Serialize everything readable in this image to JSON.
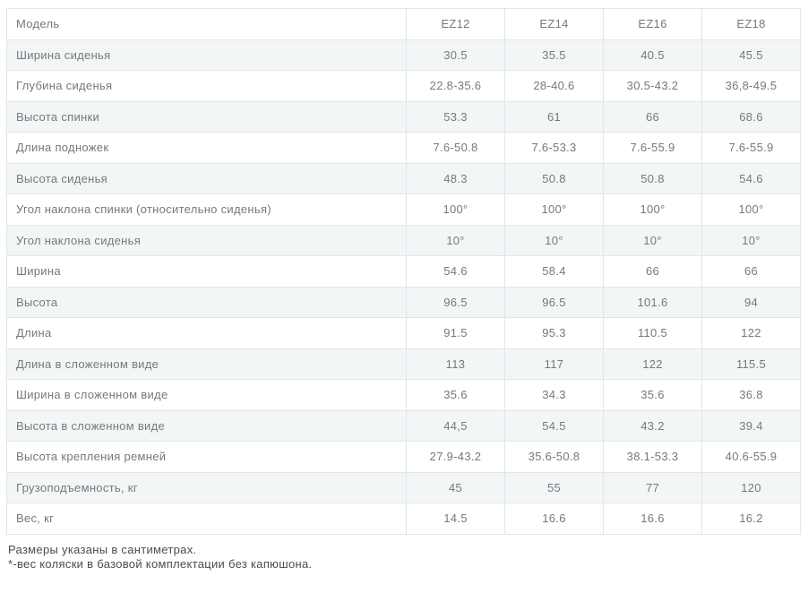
{
  "table": {
    "rows": [
      {
        "label": "Модель",
        "values": [
          "EZ12",
          "EZ14",
          "EZ16",
          "EZ18"
        ]
      },
      {
        "label": "Ширина сиденья",
        "values": [
          "30.5",
          "35.5",
          "40.5",
          "45.5"
        ]
      },
      {
        "label": "Глубина сиденья",
        "values": [
          "22.8-35.6",
          "28-40.6",
          "30.5-43.2",
          "36,8-49.5"
        ]
      },
      {
        "label": "Высота спинки",
        "values": [
          "53.3",
          "61",
          "66",
          "68.6"
        ]
      },
      {
        "label": "Длина подножек",
        "values": [
          "7.6-50.8",
          "7.6-53.3",
          "7.6-55.9",
          "7.6-55.9"
        ]
      },
      {
        "label": "Высота сиденья",
        "values": [
          "48.3",
          "50.8",
          "50.8",
          "54.6"
        ]
      },
      {
        "label": "Угол наклона спинки (относительно сиденья)",
        "values": [
          "100°",
          "100°",
          "100°",
          "100°"
        ]
      },
      {
        "label": "Угол наклона сиденья",
        "values": [
          "10°",
          "10°",
          "10°",
          "10°"
        ]
      },
      {
        "label": "Ширина",
        "values": [
          "54.6",
          "58.4",
          "66",
          "66"
        ]
      },
      {
        "label": "Высота",
        "values": [
          "96.5",
          "96.5",
          "101.6",
          "94"
        ]
      },
      {
        "label": "Длина",
        "values": [
          "91.5",
          "95.3",
          "110.5",
          "122"
        ]
      },
      {
        "label": "Длина в сложенном виде",
        "values": [
          "113",
          "117",
          "122",
          "115.5"
        ]
      },
      {
        "label": "Ширина в сложенном виде",
        "values": [
          "35.6",
          "34.3",
          "35.6",
          "36.8"
        ]
      },
      {
        "label": "Высота в сложенном виде",
        "values": [
          "44,5",
          "54.5",
          "43.2",
          "39.4"
        ]
      },
      {
        "label": "Высота крепления ремней",
        "values": [
          "27.9-43.2",
          "35.6-50.8",
          "38.1-53.3",
          "40.6-55.9"
        ]
      },
      {
        "label": "Грузоподъемность, кг",
        "values": [
          "45",
          "55",
          "77",
          "120"
        ]
      },
      {
        "label": "Вес, кг",
        "values": [
          "14.5",
          "16.6",
          "16.6",
          "16.2"
        ]
      }
    ]
  },
  "footnotes": {
    "units": "Размеры указаны в сантиметрах.",
    "weight": "*-вес коляски в базовой комплектации без капюшона."
  },
  "colors": {
    "text": "#77787b",
    "footnote_text": "#4b4c50",
    "border": "#e2e6e9",
    "stripe": "#f3f6f7",
    "background": "#ffffff"
  }
}
